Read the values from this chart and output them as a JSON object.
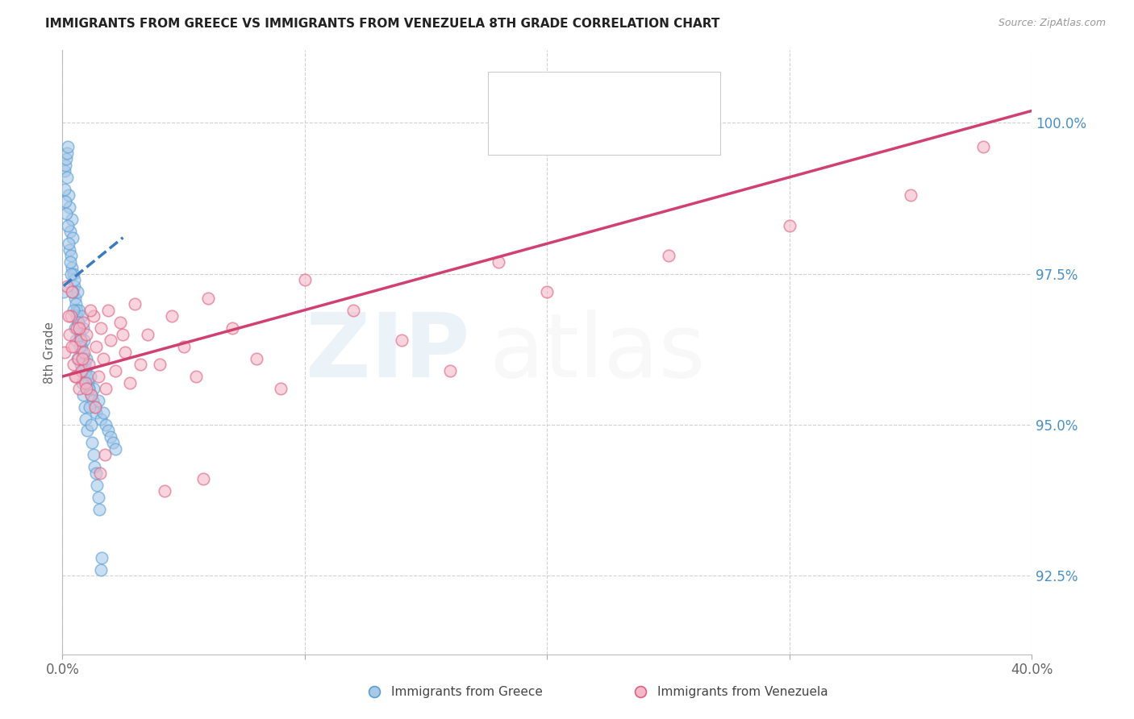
{
  "title": "IMMIGRANTS FROM GREECE VS IMMIGRANTS FROM VENEZUELA 8TH GRADE CORRELATION CHART",
  "source": "Source: ZipAtlas.com",
  "ylabel": "8th Grade",
  "yticks": [
    92.5,
    95.0,
    97.5,
    100.0
  ],
  "ytick_labels": [
    "92.5%",
    "95.0%",
    "97.5%",
    "100.0%"
  ],
  "xlim": [
    0.0,
    40.0
  ],
  "ylim": [
    91.2,
    101.2
  ],
  "color_blue": "#a8c8e8",
  "color_pink": "#f4b8c8",
  "color_blue_edge": "#5a9fd4",
  "color_pink_edge": "#e06080",
  "color_blue_line": "#3a7abf",
  "color_pink_line": "#d04070",
  "color_blue_text": "#4a90c4",
  "color_pink_text": "#d04070",
  "greece_x": [
    0.05,
    0.1,
    0.12,
    0.15,
    0.18,
    0.2,
    0.22,
    0.25,
    0.28,
    0.3,
    0.32,
    0.35,
    0.38,
    0.4,
    0.42,
    0.45,
    0.48,
    0.5,
    0.52,
    0.55,
    0.58,
    0.6,
    0.62,
    0.65,
    0.68,
    0.7,
    0.72,
    0.75,
    0.78,
    0.8,
    0.82,
    0.85,
    0.88,
    0.9,
    0.92,
    0.95,
    0.98,
    1.0,
    1.05,
    1.1,
    1.15,
    1.2,
    1.25,
    1.3,
    1.35,
    1.4,
    1.5,
    1.6,
    1.7,
    1.8,
    1.9,
    2.0,
    2.1,
    2.2,
    0.08,
    0.13,
    0.17,
    0.23,
    0.27,
    0.33,
    0.37,
    0.43,
    0.47,
    0.53,
    0.57,
    0.63,
    0.67,
    0.73,
    0.77,
    0.83,
    0.87,
    0.93,
    0.97,
    1.03,
    1.08,
    1.12,
    1.18,
    1.22,
    1.28,
    1.32,
    1.38,
    1.42,
    1.48,
    1.52,
    1.58,
    1.62
  ],
  "greece_y": [
    97.2,
    99.2,
    99.3,
    99.4,
    99.1,
    99.5,
    99.6,
    98.8,
    98.6,
    97.9,
    98.2,
    97.8,
    98.4,
    97.6,
    98.1,
    97.5,
    97.3,
    97.4,
    97.1,
    97.0,
    96.9,
    96.8,
    97.2,
    96.7,
    96.6,
    96.9,
    96.5,
    96.4,
    96.8,
    96.3,
    96.2,
    96.6,
    96.1,
    96.4,
    96.0,
    95.9,
    95.8,
    96.1,
    95.7,
    95.6,
    95.8,
    95.5,
    95.4,
    95.6,
    95.3,
    95.2,
    95.4,
    95.1,
    95.2,
    95.0,
    94.9,
    94.8,
    94.7,
    94.6,
    98.9,
    98.7,
    98.5,
    98.3,
    98.0,
    97.7,
    97.5,
    97.2,
    96.9,
    96.6,
    96.4,
    96.1,
    96.7,
    96.3,
    96.0,
    95.7,
    95.5,
    95.3,
    95.1,
    94.9,
    95.6,
    95.3,
    95.0,
    94.7,
    94.5,
    94.3,
    94.2,
    94.0,
    93.8,
    93.6,
    92.6,
    92.8
  ],
  "venezuela_x": [
    0.1,
    0.2,
    0.3,
    0.35,
    0.4,
    0.45,
    0.5,
    0.55,
    0.6,
    0.65,
    0.7,
    0.75,
    0.8,
    0.85,
    0.9,
    0.95,
    1.0,
    1.1,
    1.2,
    1.3,
    1.4,
    1.5,
    1.6,
    1.7,
    1.8,
    1.9,
    2.0,
    2.2,
    2.4,
    2.6,
    2.8,
    3.0,
    3.5,
    4.0,
    4.5,
    5.0,
    5.5,
    6.0,
    7.0,
    8.0,
    9.0,
    10.0,
    12.0,
    14.0,
    16.0,
    18.0,
    20.0,
    25.0,
    30.0,
    35.0,
    38.0,
    0.25,
    0.38,
    0.52,
    0.68,
    0.82,
    0.98,
    1.15,
    1.35,
    1.55,
    1.75,
    2.5,
    3.2,
    4.2,
    5.8
  ],
  "venezuela_y": [
    96.2,
    97.3,
    96.5,
    96.8,
    97.2,
    96.0,
    96.3,
    95.8,
    96.6,
    96.1,
    95.6,
    96.4,
    95.9,
    96.7,
    96.2,
    95.7,
    96.5,
    96.0,
    95.5,
    96.8,
    96.3,
    95.8,
    96.6,
    96.1,
    95.6,
    96.9,
    96.4,
    95.9,
    96.7,
    96.2,
    95.7,
    97.0,
    96.5,
    96.0,
    96.8,
    96.3,
    95.8,
    97.1,
    96.6,
    96.1,
    95.6,
    97.4,
    96.9,
    96.4,
    95.9,
    97.7,
    97.2,
    97.8,
    98.3,
    98.8,
    99.6,
    96.8,
    96.3,
    95.8,
    96.6,
    96.1,
    95.6,
    96.9,
    95.3,
    94.2,
    94.5,
    96.5,
    96.0,
    93.9,
    94.1
  ],
  "greece_line_x": [
    0.05,
    2.5
  ],
  "greece_line_y": [
    97.3,
    98.1
  ],
  "venezuela_line_x": [
    0.0,
    40.0
  ],
  "venezuela_line_y": [
    95.8,
    100.2
  ]
}
